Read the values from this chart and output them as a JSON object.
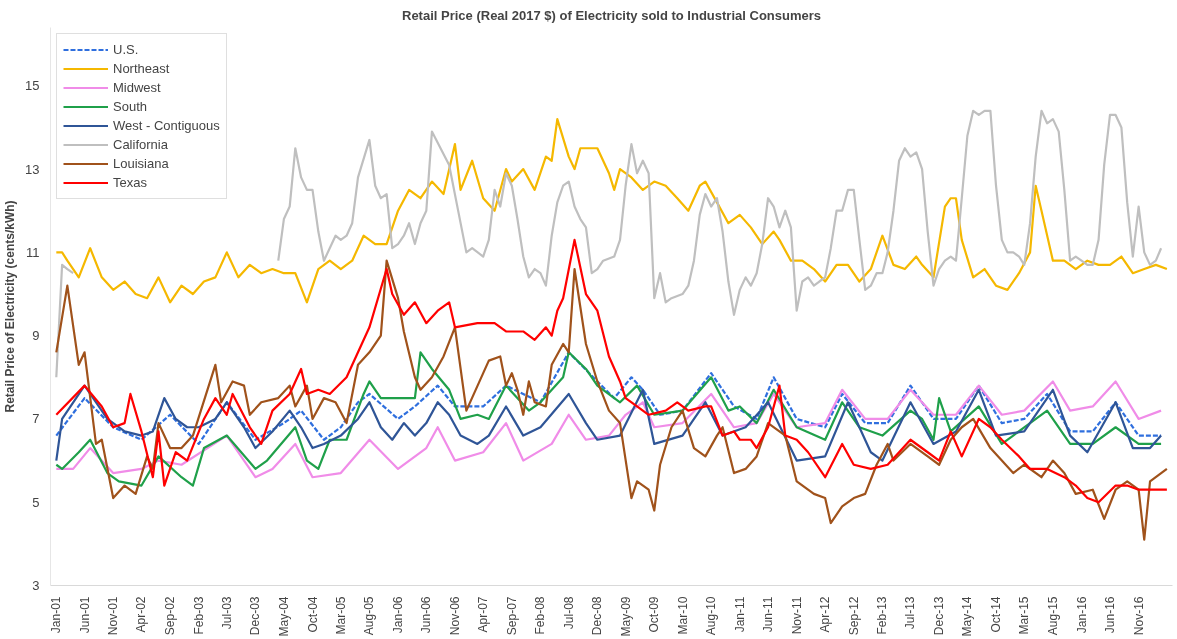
{
  "chart_data": {
    "type": "line",
    "title": "Retail Price (Real 2017 $) of Electricity sold to Industrial Consumers",
    "ylabel": "Retail Price of Electricity (cents/kWh)",
    "xlim": [
      "2000-12",
      "2017-05"
    ],
    "ylim": [
      3,
      16.4
    ],
    "yticks": [
      3,
      5,
      7,
      9,
      11,
      13,
      15
    ],
    "xticks": [
      {
        "value": "2001-01",
        "label": "Jan-01"
      },
      {
        "value": "2001-06",
        "label": "Jun-01"
      },
      {
        "value": "2001-11",
        "label": "Nov-01"
      },
      {
        "value": "2002-04",
        "label": "Apr-02"
      },
      {
        "value": "2002-09",
        "label": "Sep-02"
      },
      {
        "value": "2003-02",
        "label": "Feb-03"
      },
      {
        "value": "2003-07",
        "label": "Jul-03"
      },
      {
        "value": "2003-12",
        "label": "Dec-03"
      },
      {
        "value": "2004-05",
        "label": "May-04"
      },
      {
        "value": "2004-10",
        "label": "Oct-04"
      },
      {
        "value": "2005-03",
        "label": "Mar-05"
      },
      {
        "value": "2005-08",
        "label": "Aug-05"
      },
      {
        "value": "2006-01",
        "label": "Jan-06"
      },
      {
        "value": "2006-06",
        "label": "Jun-06"
      },
      {
        "value": "2006-11",
        "label": "Nov-06"
      },
      {
        "value": "2007-04",
        "label": "Apr-07"
      },
      {
        "value": "2007-09",
        "label": "Sep-07"
      },
      {
        "value": "2008-02",
        "label": "Feb-08"
      },
      {
        "value": "2008-07",
        "label": "Jul-08"
      },
      {
        "value": "2008-12",
        "label": "Dec-08"
      },
      {
        "value": "2009-05",
        "label": "May-09"
      },
      {
        "value": "2009-10",
        "label": "Oct-09"
      },
      {
        "value": "2010-03",
        "label": "Mar-10"
      },
      {
        "value": "2010-08",
        "label": "Aug-10"
      },
      {
        "value": "2011-01",
        "label": "Jan-11"
      },
      {
        "value": "2011-06",
        "label": "Jun-11"
      },
      {
        "value": "2011-11",
        "label": "Nov-11"
      },
      {
        "value": "2012-04",
        "label": "Apr-12"
      },
      {
        "value": "2012-09",
        "label": "Sep-12"
      },
      {
        "value": "2013-02",
        "label": "Feb-13"
      },
      {
        "value": "2013-07",
        "label": "Jul-13"
      },
      {
        "value": "2013-12",
        "label": "Dec-13"
      },
      {
        "value": "2014-05",
        "label": "May-14"
      },
      {
        "value": "2014-10",
        "label": "Oct-14"
      },
      {
        "value": "2015-03",
        "label": "Mar-15"
      },
      {
        "value": "2015-08",
        "label": "Aug-15"
      },
      {
        "value": "2016-01",
        "label": "Jan-16"
      },
      {
        "value": "2016-06",
        "label": "Jun-16"
      },
      {
        "value": "2016-11",
        "label": "Nov-16"
      }
    ],
    "legend": "top left",
    "series": [
      {
        "name": "U.S.",
        "color": "#2f6fde",
        "line_style": "dashed",
        "x": [
          "2001-01",
          "2001-06",
          "2001-11",
          "2002-04",
          "2002-09",
          "2003-02",
          "2003-07",
          "2003-12",
          "2004-05",
          "2004-08",
          "2004-12",
          "2005-03",
          "2005-06",
          "2005-08",
          "2006-01",
          "2006-04",
          "2006-08",
          "2006-11",
          "2007-04",
          "2007-08",
          "2008-02",
          "2008-07",
          "2008-12",
          "2009-03",
          "2009-06",
          "2009-08",
          "2009-11",
          "2010-03",
          "2010-08",
          "2010-12",
          "2011-04",
          "2011-07",
          "2011-11",
          "2012-04",
          "2012-07",
          "2012-11",
          "2013-03",
          "2013-07",
          "2013-11",
          "2014-03",
          "2014-07",
          "2014-11",
          "2015-03",
          "2015-07",
          "2015-11",
          "2016-03",
          "2016-07",
          "2016-11",
          "2017-03"
        ],
        "values": [
          6.6,
          7.5,
          6.8,
          6.5,
          7.1,
          6.4,
          7.4,
          6.5,
          6.9,
          7.2,
          6.5,
          6.8,
          7.4,
          7.6,
          7.0,
          7.3,
          7.8,
          7.3,
          7.3,
          7.8,
          7.4,
          8.6,
          7.9,
          7.5,
          8.0,
          7.7,
          7.1,
          7.2,
          8.1,
          7.3,
          7.0,
          8.0,
          7.0,
          6.8,
          7.6,
          6.9,
          6.9,
          7.8,
          7.0,
          7.0,
          7.8,
          6.9,
          7.0,
          7.6,
          6.7,
          6.7,
          7.4,
          6.6,
          6.6
        ]
      },
      {
        "name": "Northeast",
        "color": "#f5b800",
        "x": [
          "2001-01",
          "2001-02",
          "2001-03",
          "2001-05",
          "2001-07",
          "2001-09",
          "2001-11",
          "2002-01",
          "2002-03",
          "2002-05",
          "2002-07",
          "2002-09",
          "2002-11",
          "2003-01",
          "2003-03",
          "2003-05",
          "2003-07",
          "2003-09",
          "2003-11",
          "2004-01",
          "2004-03",
          "2004-05",
          "2004-07",
          "2004-09",
          "2004-11",
          "2005-01",
          "2005-03",
          "2005-05",
          "2005-07",
          "2005-09",
          "2005-11",
          "2006-01",
          "2006-03",
          "2006-05",
          "2006-07",
          "2006-09",
          "2006-11",
          "2006-12",
          "2007-02",
          "2007-04",
          "2007-06",
          "2007-08",
          "2007-09",
          "2007-11",
          "2008-01",
          "2008-03",
          "2008-04",
          "2008-05",
          "2008-07",
          "2008-08",
          "2008-09",
          "2008-11",
          "2008-12",
          "2009-02",
          "2009-03",
          "2009-04",
          "2009-06",
          "2009-08",
          "2009-10",
          "2009-12",
          "2010-02",
          "2010-04",
          "2010-06",
          "2010-07",
          "2010-09",
          "2010-11",
          "2011-01",
          "2011-03",
          "2011-05",
          "2011-07",
          "2011-08",
          "2011-10",
          "2011-12",
          "2012-02",
          "2012-04",
          "2012-06",
          "2012-08",
          "2012-10",
          "2012-12",
          "2013-02",
          "2013-04",
          "2013-06",
          "2013-08",
          "2013-09",
          "2013-11",
          "2014-01",
          "2014-02",
          "2014-03",
          "2014-04",
          "2014-06",
          "2014-08",
          "2014-10",
          "2014-12",
          "2015-02",
          "2015-04",
          "2015-05",
          "2015-06",
          "2015-08",
          "2015-10",
          "2015-12",
          "2016-02",
          "2016-04",
          "2016-06",
          "2016-08",
          "2016-10",
          "2016-12",
          "2017-02",
          "2017-04"
        ],
        "values": [
          11.0,
          11.0,
          10.8,
          10.4,
          11.1,
          10.4,
          10.1,
          10.3,
          10.0,
          9.9,
          10.4,
          9.8,
          10.2,
          10.0,
          10.3,
          10.4,
          11.0,
          10.4,
          10.7,
          10.5,
          10.6,
          10.5,
          10.5,
          9.8,
          10.6,
          10.8,
          10.6,
          10.8,
          11.4,
          11.2,
          11.2,
          12.0,
          12.5,
          12.3,
          12.7,
          12.4,
          13.6,
          12.5,
          13.2,
          12.3,
          12.0,
          13.0,
          12.7,
          13.0,
          12.5,
          13.3,
          13.2,
          14.2,
          13.3,
          13.0,
          13.5,
          13.5,
          13.5,
          12.9,
          12.5,
          13.0,
          12.8,
          12.5,
          12.7,
          12.6,
          12.3,
          12.0,
          12.6,
          12.7,
          12.2,
          11.7,
          11.9,
          11.6,
          11.2,
          11.5,
          11.3,
          10.8,
          10.8,
          10.6,
          10.3,
          10.7,
          10.7,
          10.3,
          10.6,
          11.4,
          10.7,
          10.6,
          10.9,
          10.7,
          10.4,
          12.1,
          12.3,
          12.3,
          11.3,
          10.4,
          10.6,
          10.2,
          10.1,
          10.5,
          11.0,
          12.6,
          12.0,
          10.8,
          10.8,
          10.6,
          10.8,
          10.7,
          10.7,
          10.9,
          10.5,
          10.6,
          10.7,
          10.6
        ]
      },
      {
        "name": "Midwest",
        "color": "#f08ce8",
        "x": [
          "2001-01",
          "2001-04",
          "2001-07",
          "2001-11",
          "2002-04",
          "2002-07",
          "2002-11",
          "2003-07",
          "2003-12",
          "2004-03",
          "2004-07",
          "2004-10",
          "2005-03",
          "2005-08",
          "2006-01",
          "2006-06",
          "2006-08",
          "2006-11",
          "2007-04",
          "2007-08",
          "2007-11",
          "2008-04",
          "2008-07",
          "2008-10",
          "2009-02",
          "2009-05",
          "2009-08",
          "2009-10",
          "2010-03",
          "2010-08",
          "2010-12",
          "2011-04",
          "2011-07",
          "2011-11",
          "2012-04",
          "2012-07",
          "2012-11",
          "2013-03",
          "2013-07",
          "2013-11",
          "2014-03",
          "2014-07",
          "2014-11",
          "2015-03",
          "2015-08",
          "2015-11",
          "2016-03",
          "2016-07",
          "2016-11",
          "2017-03"
        ],
        "values": [
          5.8,
          5.8,
          6.3,
          5.7,
          5.8,
          6.0,
          5.9,
          6.6,
          5.6,
          5.8,
          6.4,
          5.6,
          5.7,
          6.5,
          5.8,
          6.3,
          6.8,
          6.0,
          6.2,
          6.9,
          6.0,
          6.4,
          7.1,
          6.5,
          6.6,
          7.1,
          7.4,
          6.8,
          6.9,
          7.6,
          6.8,
          6.9,
          7.6,
          6.8,
          6.9,
          7.7,
          7.0,
          7.0,
          7.7,
          7.1,
          7.1,
          7.8,
          7.1,
          7.2,
          7.9,
          7.2,
          7.3,
          7.9,
          7.0,
          7.2
        ]
      },
      {
        "name": "South",
        "color": "#1fa04a",
        "x": [
          "2001-01",
          "2001-02",
          "2001-05",
          "2001-07",
          "2001-10",
          "2001-12",
          "2002-04",
          "2002-07",
          "2002-11",
          "2003-01",
          "2003-03",
          "2003-07",
          "2003-12",
          "2004-02",
          "2004-07",
          "2004-09",
          "2004-11",
          "2005-01",
          "2005-04",
          "2005-07",
          "2005-08",
          "2005-10",
          "2006-01",
          "2006-04",
          "2006-05",
          "2006-07",
          "2006-10",
          "2006-12",
          "2007-03",
          "2007-05",
          "2007-08",
          "2007-12",
          "2008-02",
          "2008-06",
          "2008-07",
          "2008-10",
          "2008-12",
          "2009-04",
          "2009-07",
          "2009-10",
          "2010-03",
          "2010-08",
          "2010-11",
          "2011-01",
          "2011-04",
          "2011-07",
          "2011-11",
          "2012-04",
          "2012-07",
          "2012-10",
          "2013-02",
          "2013-07",
          "2013-09",
          "2013-11",
          "2013-12",
          "2014-02",
          "2014-07",
          "2014-11",
          "2015-01",
          "2015-03",
          "2015-07",
          "2015-11",
          "2016-03",
          "2016-07",
          "2016-11",
          "2017-03"
        ],
        "values": [
          5.9,
          5.8,
          6.2,
          6.5,
          5.7,
          5.5,
          5.4,
          6.1,
          5.6,
          5.4,
          6.3,
          6.6,
          5.8,
          6.0,
          6.8,
          6.0,
          5.8,
          6.5,
          6.5,
          7.6,
          7.9,
          7.5,
          7.5,
          7.5,
          8.6,
          8.2,
          7.7,
          7.0,
          7.1,
          7.0,
          7.8,
          7.2,
          7.4,
          8.0,
          8.6,
          8.2,
          7.8,
          7.4,
          7.8,
          7.1,
          7.2,
          8.0,
          7.2,
          7.3,
          6.9,
          7.7,
          6.8,
          6.5,
          7.4,
          6.8,
          6.6,
          7.2,
          7.0,
          6.5,
          7.5,
          6.7,
          7.3,
          6.4,
          6.6,
          6.8,
          7.2,
          6.4,
          6.4,
          6.8,
          6.4,
          6.4
        ]
      },
      {
        "name": "West - Contiguous",
        "color": "#2f5597",
        "x": [
          "2001-01",
          "2001-02",
          "2001-06",
          "2001-10",
          "2002-01",
          "2002-04",
          "2002-06",
          "2002-08",
          "2002-10",
          "2002-12",
          "2003-02",
          "2003-05",
          "2003-07",
          "2003-10",
          "2003-12",
          "2004-03",
          "2004-06",
          "2004-08",
          "2004-10",
          "2004-12",
          "2005-03",
          "2005-06",
          "2005-08",
          "2005-10",
          "2005-12",
          "2006-02",
          "2006-04",
          "2006-06",
          "2006-08",
          "2006-10",
          "2006-12",
          "2007-03",
          "2007-05",
          "2007-08",
          "2007-11",
          "2008-02",
          "2008-07",
          "2008-10",
          "2008-12",
          "2009-04",
          "2009-08",
          "2009-10",
          "2010-03",
          "2010-07",
          "2010-10",
          "2011-02",
          "2011-06",
          "2011-11",
          "2012-04",
          "2012-08",
          "2012-12",
          "2013-02",
          "2013-07",
          "2013-11",
          "2014-03",
          "2014-07",
          "2014-10",
          "2015-03",
          "2015-08",
          "2015-11",
          "2016-02",
          "2016-07",
          "2016-10",
          "2017-01",
          "2017-03"
        ],
        "values": [
          6.0,
          7.0,
          7.8,
          7.0,
          6.7,
          6.6,
          6.7,
          7.5,
          7.0,
          6.8,
          6.8,
          7.0,
          7.4,
          6.8,
          6.3,
          6.7,
          7.2,
          6.8,
          6.3,
          6.4,
          6.6,
          7.0,
          7.4,
          6.8,
          6.5,
          6.9,
          6.6,
          6.9,
          7.4,
          7.1,
          6.6,
          6.4,
          6.6,
          7.3,
          6.6,
          6.8,
          7.6,
          6.9,
          6.5,
          6.6,
          7.7,
          6.4,
          6.6,
          7.4,
          6.6,
          6.8,
          7.4,
          6.0,
          6.1,
          7.4,
          6.2,
          6.0,
          7.4,
          6.4,
          6.7,
          7.7,
          6.6,
          6.7,
          7.7,
          6.6,
          6.2,
          7.4,
          6.3,
          6.3,
          6.6
        ]
      },
      {
        "name": "California",
        "color": "#bfbfbf",
        "x": [
          "2001-01",
          "2001-02",
          "2001-03",
          "2001-04",
          "2001-05",
          "2004-03",
          "2004-04",
          "2004-05",
          "2004-06",
          "2004-07",
          "2004-08",
          "2004-09",
          "2004-10",
          "2004-11",
          "2004-12",
          "2005-02",
          "2005-03",
          "2005-04",
          "2005-05",
          "2005-06",
          "2005-08",
          "2005-09",
          "2005-10",
          "2005-11",
          "2005-12",
          "2006-01",
          "2006-02",
          "2006-03",
          "2006-04",
          "2006-05",
          "2006-06",
          "2006-07",
          "2006-10",
          "2007-01",
          "2007-02",
          "2007-04",
          "2007-05",
          "2007-06",
          "2007-07",
          "2007-08",
          "2007-09",
          "2007-10",
          "2007-11",
          "2007-12",
          "2008-01",
          "2008-02",
          "2008-03",
          "2008-04",
          "2008-05",
          "2008-06",
          "2008-07",
          "2008-08",
          "2008-09",
          "2008-10",
          "2008-11",
          "2008-12",
          "2009-01",
          "2009-03",
          "2009-04",
          "2009-05",
          "2009-06",
          "2009-07",
          "2009-08",
          "2009-09",
          "2009-10",
          "2009-11",
          "2009-12",
          "2010-01",
          "2010-03",
          "2010-04",
          "2010-05",
          "2010-06",
          "2010-07",
          "2010-08",
          "2010-09",
          "2010-10",
          "2010-11",
          "2010-12",
          "2011-01",
          "2011-02",
          "2011-03",
          "2011-04",
          "2011-05",
          "2011-06",
          "2011-07",
          "2011-08",
          "2011-09",
          "2011-10",
          "2011-11",
          "2011-12",
          "2012-01",
          "2012-02",
          "2012-03",
          "2012-04",
          "2012-05",
          "2012-06",
          "2012-07",
          "2012-08",
          "2012-09",
          "2012-10",
          "2012-11",
          "2012-12",
          "2013-01",
          "2013-02",
          "2013-03",
          "2013-04",
          "2013-05",
          "2013-06",
          "2013-07",
          "2013-08",
          "2013-09",
          "2013-10",
          "2013-11",
          "2013-12",
          "2014-01",
          "2014-02",
          "2014-03",
          "2014-04",
          "2014-05",
          "2014-06",
          "2014-07",
          "2014-08",
          "2014-09",
          "2014-10",
          "2014-11",
          "2014-12",
          "2015-01",
          "2015-02",
          "2015-03",
          "2015-04",
          "2015-05",
          "2015-06",
          "2015-07",
          "2015-08",
          "2015-09",
          "2015-10",
          "2015-11",
          "2015-12",
          "2016-01",
          "2016-02",
          "2016-03",
          "2016-04",
          "2016-05",
          "2016-06",
          "2016-07",
          "2016-08",
          "2016-09",
          "2016-10",
          "2016-11",
          "2016-12",
          "2017-01",
          "2017-02",
          "2017-03"
        ],
        "values": [
          8.0,
          10.7,
          10.6,
          10.5,
          null,
          null,
          10.8,
          11.8,
          12.1,
          13.5,
          12.8,
          12.5,
          12.5,
          11.5,
          10.8,
          11.4,
          11.3,
          11.4,
          11.7,
          12.8,
          13.7,
          12.6,
          12.3,
          12.4,
          11.1,
          11.2,
          11.4,
          11.7,
          11.2,
          11.7,
          12.0,
          13.9,
          13.1,
          11.0,
          11.1,
          10.9,
          11.3,
          12.5,
          12.1,
          12.9,
          12.6,
          11.8,
          10.9,
          10.4,
          10.6,
          10.5,
          10.2,
          11.4,
          12.2,
          12.6,
          12.7,
          12.1,
          11.8,
          11.6,
          10.5,
          10.6,
          10.8,
          10.9,
          11.3,
          12.6,
          13.6,
          12.9,
          13.2,
          12.9,
          9.9,
          10.5,
          9.8,
          9.9,
          10.0,
          10.2,
          10.8,
          11.9,
          12.4,
          12.1,
          12.3,
          11.5,
          10.3,
          9.5,
          10.1,
          10.4,
          10.2,
          10.5,
          11.2,
          12.3,
          12.1,
          11.6,
          12.0,
          11.6,
          9.6,
          10.3,
          10.4,
          10.2,
          10.3,
          10.4,
          11.1,
          12.0,
          12.0,
          12.5,
          12.5,
          11.3,
          10.1,
          10.2,
          10.5,
          10.5,
          11.0,
          12.0,
          13.2,
          13.5,
          13.3,
          13.4,
          13.0,
          11.5,
          10.2,
          10.6,
          10.8,
          10.9,
          10.8,
          12.3,
          13.8,
          14.4,
          14.3,
          14.4,
          14.4,
          12.6,
          11.3,
          11.0,
          11.0,
          10.9,
          10.7,
          11.7,
          13.3,
          14.4,
          14.1,
          14.2,
          13.9,
          12.5,
          10.8,
          10.9,
          10.8,
          10.7,
          10.7,
          11.3,
          13.1,
          14.3,
          14.3,
          14.0,
          12.2,
          10.9,
          12.1,
          11.0,
          10.7,
          10.8,
          11.1
        ]
      },
      {
        "name": "Louisiana",
        "color": "#a0521b",
        "x": [
          "2001-01",
          "2001-03",
          "2001-05",
          "2001-06",
          "2001-08",
          "2001-09",
          "2001-11",
          "2002-01",
          "2002-03",
          "2002-05",
          "2002-06",
          "2002-07",
          "2002-09",
          "2002-11",
          "2003-01",
          "2003-05",
          "2003-06",
          "2003-08",
          "2003-10",
          "2003-11",
          "2004-01",
          "2004-04",
          "2004-06",
          "2004-07",
          "2004-09",
          "2004-10",
          "2004-12",
          "2005-02",
          "2005-04",
          "2005-06",
          "2005-08",
          "2005-10",
          "2005-11",
          "2006-01",
          "2006-02",
          "2006-04",
          "2006-05",
          "2006-07",
          "2006-09",
          "2006-11",
          "2007-01",
          "2007-04",
          "2007-05",
          "2007-07",
          "2007-08",
          "2007-09",
          "2007-10",
          "2007-11",
          "2007-12",
          "2008-01",
          "2008-03",
          "2008-04",
          "2008-06",
          "2008-07",
          "2008-08",
          "2008-10",
          "2008-12",
          "2009-02",
          "2009-04",
          "2009-06",
          "2009-07",
          "2009-09",
          "2009-10",
          "2009-11",
          "2010-01",
          "2010-03",
          "2010-05",
          "2010-07",
          "2010-09",
          "2010-10",
          "2010-12",
          "2011-02",
          "2011-04",
          "2011-06",
          "2011-09",
          "2011-11",
          "2012-02",
          "2012-04",
          "2012-05",
          "2012-07",
          "2012-09",
          "2012-11",
          "2013-01",
          "2013-03",
          "2013-04",
          "2013-07",
          "2013-10",
          "2013-12",
          "2014-02",
          "2014-04",
          "2014-06",
          "2014-09",
          "2015-01",
          "2015-03",
          "2015-06",
          "2015-08",
          "2015-10",
          "2015-12",
          "2016-03",
          "2016-05",
          "2016-07",
          "2016-09",
          "2016-11",
          "2016-12",
          "2017-01",
          "2017-04"
        ],
        "values": [
          8.6,
          10.2,
          8.3,
          8.6,
          6.4,
          6.5,
          5.1,
          5.4,
          5.2,
          6.1,
          5.8,
          6.9,
          6.3,
          6.3,
          6.6,
          8.3,
          7.4,
          7.9,
          7.8,
          7.1,
          7.4,
          7.5,
          7.8,
          7.3,
          7.8,
          7.0,
          7.5,
          7.4,
          6.9,
          8.3,
          8.6,
          9.0,
          10.8,
          9.9,
          9.1,
          8.0,
          7.7,
          8.0,
          8.5,
          9.2,
          7.2,
          8.1,
          8.4,
          8.5,
          7.8,
          8.1,
          7.7,
          7.1,
          7.9,
          7.4,
          7.3,
          8.3,
          8.8,
          8.6,
          10.6,
          8.8,
          7.9,
          7.2,
          6.9,
          5.1,
          5.5,
          5.3,
          4.8,
          5.9,
          6.8,
          7.2,
          6.3,
          6.1,
          6.6,
          6.8,
          5.7,
          5.8,
          6.1,
          6.9,
          6.6,
          5.5,
          5.2,
          5.1,
          4.5,
          4.9,
          5.1,
          5.2,
          5.9,
          6.4,
          6.0,
          6.4,
          6.1,
          5.9,
          6.5,
          6.8,
          7.0,
          6.3,
          5.7,
          5.9,
          5.6,
          6.0,
          5.7,
          5.2,
          5.3,
          4.6,
          5.3,
          5.5,
          5.3,
          4.1,
          5.5,
          5.8
        ]
      },
      {
        "name": "Texas",
        "color": "#ff0000",
        "x": [
          "2001-01",
          "2001-06",
          "2001-09",
          "2001-11",
          "2002-01",
          "2002-02",
          "2002-04",
          "2002-06",
          "2002-07",
          "2002-08",
          "2002-10",
          "2002-12",
          "2003-03",
          "2003-05",
          "2003-07",
          "2003-08",
          "2003-11",
          "2004-01",
          "2004-03",
          "2004-06",
          "2004-08",
          "2004-09",
          "2004-11",
          "2005-01",
          "2005-04",
          "2005-06",
          "2005-08",
          "2005-11",
          "2005-12",
          "2006-02",
          "2006-04",
          "2006-06",
          "2006-08",
          "2006-10",
          "2006-11",
          "2007-03",
          "2007-06",
          "2007-08",
          "2007-11",
          "2008-01",
          "2008-03",
          "2008-04",
          "2008-05",
          "2008-06",
          "2008-08",
          "2008-10",
          "2008-12",
          "2009-02",
          "2009-04",
          "2009-05",
          "2009-07",
          "2009-09",
          "2009-12",
          "2010-02",
          "2010-04",
          "2010-07",
          "2010-08",
          "2010-10",
          "2010-12",
          "2011-01",
          "2011-03",
          "2011-04",
          "2011-06",
          "2011-08",
          "2011-09",
          "2011-11",
          "2012-01",
          "2012-04",
          "2012-07",
          "2012-09",
          "2012-12",
          "2013-03",
          "2013-07",
          "2013-10",
          "2013-12",
          "2014-02",
          "2014-04",
          "2014-07",
          "2014-09",
          "2014-11",
          "2015-02",
          "2015-04",
          "2015-07",
          "2015-10",
          "2015-12",
          "2016-02",
          "2016-04",
          "2016-07",
          "2016-09",
          "2016-11",
          "2017-01",
          "2017-04"
        ],
        "values": [
          7.1,
          7.8,
          7.3,
          6.8,
          6.9,
          7.6,
          6.7,
          5.6,
          6.7,
          5.4,
          6.2,
          6.0,
          7.0,
          7.5,
          7.1,
          7.6,
          6.8,
          6.4,
          7.2,
          7.6,
          8.2,
          7.6,
          7.7,
          7.6,
          8.0,
          8.6,
          9.2,
          10.6,
          10.0,
          9.5,
          9.8,
          9.3,
          9.6,
          9.8,
          9.2,
          9.3,
          9.3,
          9.1,
          9.1,
          8.9,
          9.2,
          9.0,
          9.6,
          9.9,
          11.3,
          10.0,
          9.6,
          8.5,
          7.9,
          7.5,
          7.3,
          7.1,
          7.2,
          7.4,
          7.2,
          7.3,
          7.3,
          6.6,
          6.7,
          6.5,
          6.5,
          6.3,
          6.8,
          7.8,
          6.6,
          6.5,
          6.2,
          5.6,
          6.4,
          5.9,
          5.8,
          5.9,
          6.5,
          6.2,
          6.0,
          6.7,
          6.1,
          7.0,
          6.8,
          6.5,
          6.1,
          5.8,
          5.8,
          5.6,
          5.4,
          5.1,
          5.0,
          5.4,
          5.4,
          5.3,
          5.3,
          5.3
        ]
      }
    ]
  }
}
